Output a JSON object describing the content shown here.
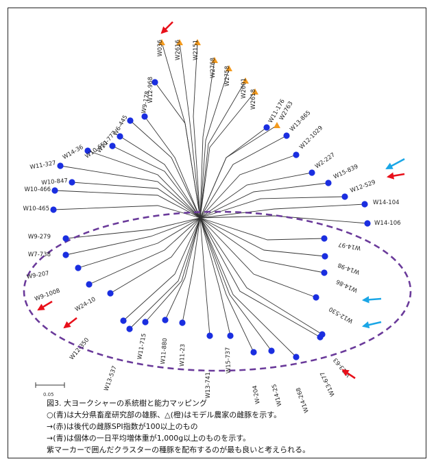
{
  "figure": {
    "scale_bar_label": "0.05",
    "caption": {
      "title": "図3.  大ヨークシャーの系統樹と能力マッピング",
      "line1": "○(青)は大分県畜産研究部の雄豚、△(橙)はモデル農家の雌豚を示す。",
      "line2": "→(赤)は後代の雌豚SPI指数が100以上のもの",
      "line3": "→(青)は個体の一日平均増体重が1,000g以上のものを示す。",
      "line4": "紫マーカーで囲んだクラスターの種豚を配布するのが最も良いと考えられる。"
    }
  },
  "colors": {
    "boar_blue": "#1a2ee0",
    "sow_orange": "#f39a1e",
    "arrow_red": "#e8101a",
    "arrow_blue": "#1aa6e6",
    "cluster_purple": "#6a3a9a",
    "branch": "#333333"
  },
  "leaves": [
    {
      "label": "W036",
      "marker": "triangle"
    },
    {
      "label": "W2616",
      "marker": "triangle"
    },
    {
      "label": "W2151",
      "marker": "triangle"
    },
    {
      "label": "W12-968",
      "marker": "circle"
    },
    {
      "label": "W2768",
      "marker": "triangle"
    },
    {
      "label": "W2758",
      "marker": "triangle"
    },
    {
      "label": "W2601",
      "marker": "triangle"
    },
    {
      "label": "W2618",
      "marker": "triangle"
    },
    {
      "label": "W6-445",
      "marker": "circle"
    },
    {
      "label": "W9-178",
      "marker": "circle"
    },
    {
      "label": "W10-777",
      "marker": "circle"
    },
    {
      "label": "W10-651",
      "marker": "circle"
    },
    {
      "label": "W14-36",
      "marker": "circle"
    },
    {
      "label": "W11-327",
      "marker": "circle"
    },
    {
      "label": "W10-847",
      "marker": "circle"
    },
    {
      "label": "W10-466",
      "marker": "circle"
    },
    {
      "label": "W10-465",
      "marker": "circle"
    },
    {
      "label": "W11-176",
      "marker": "circle"
    },
    {
      "label": "W2763",
      "marker": "triangle"
    },
    {
      "label": "W13-865",
      "marker": "circle"
    },
    {
      "label": "W12-1029",
      "marker": "circle"
    },
    {
      "label": "W2-227",
      "marker": "circle"
    },
    {
      "label": "W15-839",
      "marker": "circle"
    },
    {
      "label": "W12-529",
      "marker": "circle"
    },
    {
      "label": "W14-104",
      "marker": "circle"
    },
    {
      "label": "W14-106",
      "marker": "circle"
    },
    {
      "label": "W9-279",
      "marker": "circle"
    },
    {
      "label": "W7-738",
      "marker": "circle"
    },
    {
      "label": "W9-207",
      "marker": "circle"
    },
    {
      "label": "W9-1008",
      "marker": "circle"
    },
    {
      "label": "W24-10",
      "marker": "circle"
    },
    {
      "label": "W12-350",
      "marker": "circle"
    },
    {
      "label": "W13-537",
      "marker": "circle"
    },
    {
      "label": "W11-715",
      "marker": "circle"
    },
    {
      "label": "W11-880",
      "marker": "circle"
    },
    {
      "label": "W11-23",
      "marker": "circle"
    },
    {
      "label": "W13-741",
      "marker": "circle"
    },
    {
      "label": "W15-737",
      "marker": "circle"
    },
    {
      "label": "W-204",
      "marker": "circle"
    },
    {
      "label": "W14-25",
      "marker": "circle"
    },
    {
      "label": "W14-268",
      "marker": "circle"
    },
    {
      "label": "W13-677",
      "marker": "circle"
    },
    {
      "label": "W13-63",
      "marker": "circle"
    },
    {
      "label": "W12-530",
      "marker": "circle"
    },
    {
      "label": "W14-86",
      "marker": "circle"
    },
    {
      "label": "W14-98",
      "marker": "circle"
    },
    {
      "label": "W14-97",
      "marker": "circle"
    }
  ],
  "arrows": [
    {
      "target": "W12-968",
      "color": "red"
    },
    {
      "target": "W15-839",
      "color": "blue"
    },
    {
      "target": "W12-529",
      "color": "red"
    },
    {
      "target": "W9-1008",
      "color": "red"
    },
    {
      "target": "W24-10",
      "color": "red"
    },
    {
      "target": "W12-530",
      "color": "blue"
    },
    {
      "target": "W13-63",
      "color": "blue"
    },
    {
      "target": "W13-677",
      "color": "red"
    }
  ]
}
